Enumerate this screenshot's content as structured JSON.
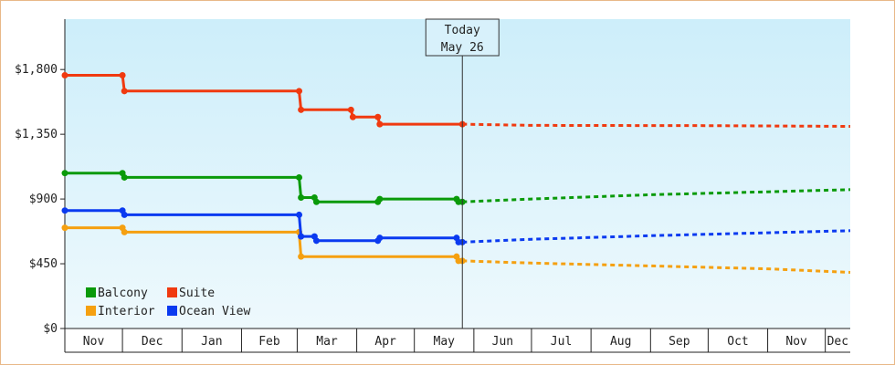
{
  "chart_data": {
    "type": "line",
    "title": "",
    "xlabel": "",
    "ylabel": "",
    "ylim": [
      0,
      2150
    ],
    "y_ticks": [
      {
        "value": 0,
        "label": "$0"
      },
      {
        "value": 450,
        "label": "$450"
      },
      {
        "value": 900,
        "label": "$900"
      },
      {
        "value": 1350,
        "label": "$1,350"
      },
      {
        "value": 1800,
        "label": "$1,800"
      }
    ],
    "x_months": [
      "Nov",
      "Dec",
      "Jan",
      "Feb",
      "Mar",
      "Apr",
      "May",
      "Jun",
      "Jul",
      "Aug",
      "Sep",
      "Oct",
      "Nov",
      "Dec"
    ],
    "x_range": [
      "2019-11-01",
      "2020-12-14"
    ],
    "today": {
      "line1": "Today",
      "line2": "May 26",
      "date": "2020-05-26"
    },
    "grid": false,
    "legend_position": "bottom-left",
    "series": [
      {
        "name": "Balcony",
        "color": "#0a9a0a",
        "points": [
          [
            "2019-11-01",
            1080
          ],
          [
            "2019-12-01",
            1080
          ],
          [
            "2019-12-02",
            1050
          ],
          [
            "2020-03-02",
            1050
          ],
          [
            "2020-03-03",
            910
          ],
          [
            "2020-03-10",
            910
          ],
          [
            "2020-03-11",
            880
          ],
          [
            "2020-04-12",
            880
          ],
          [
            "2020-04-13",
            900
          ],
          [
            "2020-05-23",
            900
          ],
          [
            "2020-05-24",
            880
          ],
          [
            "2020-05-26",
            880
          ]
        ],
        "forecast": [
          [
            "2020-05-26",
            880
          ],
          [
            "2020-07-01",
            900
          ],
          [
            "2020-09-01",
            930
          ],
          [
            "2020-11-01",
            950
          ],
          [
            "2020-12-14",
            965
          ]
        ]
      },
      {
        "name": "Suite",
        "color": "#f03a10",
        "points": [
          [
            "2019-11-01",
            1760
          ],
          [
            "2019-12-01",
            1760
          ],
          [
            "2019-12-02",
            1650
          ],
          [
            "2020-03-02",
            1650
          ],
          [
            "2020-03-03",
            1520
          ],
          [
            "2020-03-29",
            1520
          ],
          [
            "2020-03-30",
            1470
          ],
          [
            "2020-04-12",
            1470
          ],
          [
            "2020-04-13",
            1420
          ],
          [
            "2020-05-26",
            1420
          ]
        ],
        "forecast": [
          [
            "2020-05-26",
            1420
          ],
          [
            "2020-07-01",
            1412
          ],
          [
            "2020-10-01",
            1410
          ],
          [
            "2020-12-14",
            1405
          ]
        ]
      },
      {
        "name": "Interior",
        "color": "#f5a010",
        "points": [
          [
            "2019-11-01",
            700
          ],
          [
            "2019-12-01",
            700
          ],
          [
            "2019-12-02",
            670
          ],
          [
            "2020-03-02",
            670
          ],
          [
            "2020-03-03",
            500
          ],
          [
            "2020-04-12",
            500
          ],
          [
            "2020-05-23",
            500
          ],
          [
            "2020-05-24",
            470
          ],
          [
            "2020-05-26",
            470
          ]
        ],
        "forecast": [
          [
            "2020-05-26",
            470
          ],
          [
            "2020-07-01",
            455
          ],
          [
            "2020-09-01",
            435
          ],
          [
            "2020-11-01",
            415
          ],
          [
            "2020-12-14",
            390
          ]
        ]
      },
      {
        "name": "Ocean View",
        "color": "#0a3af0",
        "points": [
          [
            "2019-11-01",
            820
          ],
          [
            "2019-12-01",
            820
          ],
          [
            "2019-12-02",
            790
          ],
          [
            "2020-03-02",
            790
          ],
          [
            "2020-03-03",
            640
          ],
          [
            "2020-03-10",
            640
          ],
          [
            "2020-03-11",
            610
          ],
          [
            "2020-04-12",
            610
          ],
          [
            "2020-04-13",
            630
          ],
          [
            "2020-05-23",
            630
          ],
          [
            "2020-05-24",
            600
          ],
          [
            "2020-05-26",
            600
          ]
        ],
        "forecast": [
          [
            "2020-05-26",
            600
          ],
          [
            "2020-07-01",
            620
          ],
          [
            "2020-09-01",
            645
          ],
          [
            "2020-11-01",
            665
          ],
          [
            "2020-12-14",
            680
          ]
        ]
      }
    ],
    "legend": [
      {
        "name": "Balcony",
        "color": "#0a9a0a"
      },
      {
        "name": "Suite",
        "color": "#f03a10"
      },
      {
        "name": "Interior",
        "color": "#f5a010"
      },
      {
        "name": "Ocean View",
        "color": "#0a3af0"
      }
    ]
  }
}
